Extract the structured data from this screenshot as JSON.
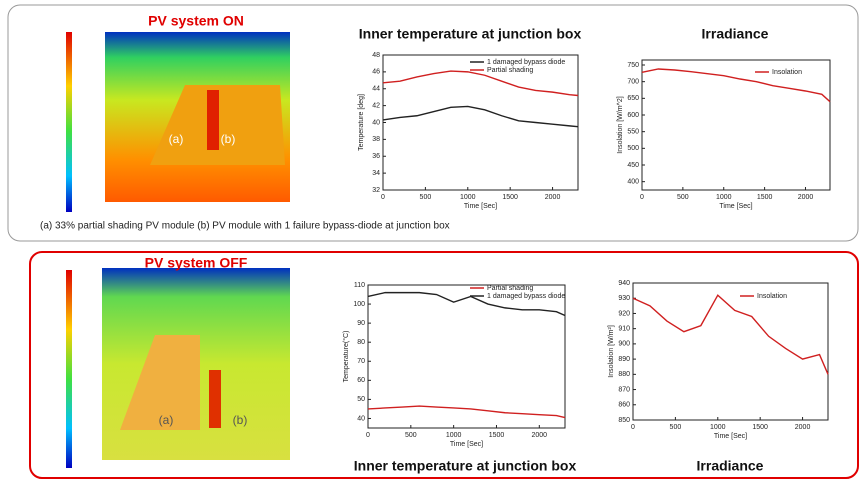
{
  "panels": [
    {
      "label": "PV system ON",
      "image_labels": [
        "(a)",
        "(b)"
      ],
      "caption": "(a) 33% partial shading PV module  (b) PV module with 1 failure bypass-diode at junction box"
    },
    {
      "label": "PV system OFF",
      "image_labels": [
        "(a)",
        "(b)"
      ]
    }
  ],
  "charts": [
    {
      "type": "line",
      "title": "Inner temperature at junction box",
      "xlabel": "Time [Sec]",
      "ylabel": "Temperature [deg]",
      "xlim": [
        0,
        2300
      ],
      "xticks": [
        0,
        500,
        1000,
        1500,
        2000
      ],
      "ylim": [
        32,
        48
      ],
      "yticks": [
        32,
        34,
        36,
        38,
        40,
        42,
        44,
        46,
        48
      ],
      "x": [
        0,
        200,
        400,
        600,
        800,
        1000,
        1200,
        1400,
        1600,
        1800,
        2000,
        2200,
        2300
      ],
      "series": [
        {
          "name": "1 damaged bypass diode",
          "color": "#222222",
          "values": [
            40.3,
            40.6,
            40.8,
            41.3,
            41.8,
            41.9,
            41.5,
            40.8,
            40.2,
            40.0,
            39.8,
            39.6,
            39.5
          ]
        },
        {
          "name": "Partial shading",
          "color": "#d02020",
          "values": [
            44.7,
            44.9,
            45.4,
            45.8,
            46.1,
            46.0,
            45.6,
            44.9,
            44.2,
            43.8,
            43.6,
            43.3,
            43.2
          ]
        }
      ]
    },
    {
      "type": "line",
      "title": "Irradiance",
      "xlabel": "Time [Sec]",
      "ylabel": "Insolation [W/m^2]",
      "xlim": [
        0,
        2300
      ],
      "xticks": [
        0,
        500,
        1000,
        1500,
        2000
      ],
      "ylim": [
        375,
        765
      ],
      "yticks": [
        400,
        450,
        500,
        550,
        600,
        650,
        700,
        750
      ],
      "x": [
        0,
        200,
        400,
        600,
        800,
        1000,
        1200,
        1400,
        1600,
        1800,
        2000,
        2200,
        2300
      ],
      "series": [
        {
          "name": "Insolation",
          "color": "#d02020",
          "values": [
            728,
            738,
            735,
            730,
            724,
            718,
            708,
            700,
            688,
            680,
            672,
            662,
            640
          ]
        }
      ]
    },
    {
      "type": "line",
      "title": "Inner temperature at junction box",
      "xlabel": "Time [Sec]",
      "ylabel": "Temperature(°C)",
      "xlim": [
        0,
        2300
      ],
      "xticks": [
        0,
        500,
        1000,
        1500,
        2000
      ],
      "ylim": [
        35,
        110
      ],
      "yticks": [
        40,
        50,
        60,
        70,
        80,
        90,
        100,
        110
      ],
      "x": [
        0,
        200,
        400,
        600,
        800,
        1000,
        1200,
        1400,
        1600,
        1800,
        2000,
        2200,
        2300
      ],
      "series": [
        {
          "name": "Partial shading",
          "color": "#d02020",
          "values": [
            45,
            45.5,
            46,
            46.5,
            46,
            45.5,
            45,
            44,
            43,
            42.5,
            42,
            41.5,
            40.5
          ]
        },
        {
          "name": "1 damaged bypass diode",
          "color": "#222222",
          "values": [
            104,
            106,
            106,
            106,
            105,
            101,
            104,
            100,
            98,
            97,
            97,
            96,
            94
          ]
        }
      ]
    },
    {
      "type": "line",
      "title": "Irradiance",
      "xlabel": "Time [Sec]",
      "ylabel": "Insolation [W/m²]",
      "xlim": [
        0,
        2300
      ],
      "xticks": [
        0,
        500,
        1000,
        1500,
        2000
      ],
      "ylim": [
        850,
        940
      ],
      "yticks": [
        850,
        860,
        870,
        880,
        890,
        900,
        910,
        920,
        930,
        940
      ],
      "x": [
        0,
        200,
        400,
        600,
        800,
        1000,
        1200,
        1400,
        1600,
        1800,
        2000,
        2200,
        2300
      ],
      "series": [
        {
          "name": "Insolation",
          "color": "#d02020",
          "values": [
            930,
            925,
            915,
            908,
            912,
            932,
            922,
            918,
            905,
            897,
            890,
            893,
            880
          ]
        }
      ]
    }
  ]
}
